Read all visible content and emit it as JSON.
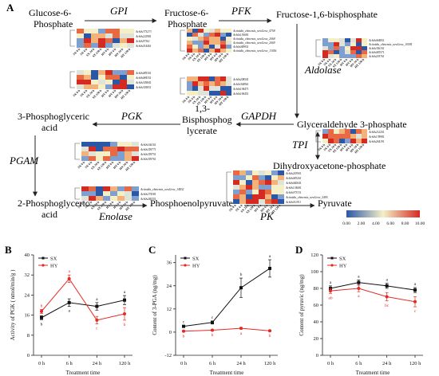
{
  "panels": {
    "A": "A",
    "B": "B",
    "C": "C",
    "D": "D"
  },
  "pathway": {
    "nodes": {
      "glucose6p": [
        "Glucose-6-",
        "Phosphate"
      ],
      "fructose6p": [
        "Fructose-6-",
        "Phosphate"
      ],
      "fructose16bp": "Fructose-1,6-bisphosphate",
      "glyceraldehyde3p": "Glyceraldehyde 3-phosphate",
      "bisphosphoglycerate": [
        "1,3-",
        "Bisphosphog",
        "lycerate"
      ],
      "phosphoglycerate3": [
        "3-Phosphoglyceric",
        "acid"
      ],
      "phosphoglycerate2": [
        "2-Phosphoglyceric",
        "acid"
      ],
      "dhap": "Dihydroxyacetone-phosphate",
      "pep": "Phosphoenolpyruvate",
      "pyruvate": "Pyruvate"
    },
    "enzymes": {
      "gpi": "GPI",
      "pfk": "PFK",
      "aldolase": "Aldolase",
      "gapdh": "GAPDH",
      "pgk": "PGK",
      "tpi": "TPI",
      "pgam": "PGAM",
      "enolase": "Enolase",
      "pk": "PK"
    }
  },
  "heatmap_columns": [
    "SX 0 h",
    "SX 6 h",
    "SX 24 h",
    "SX 120 h",
    "HY 0 h",
    "HY 6 h",
    "HY 24 h",
    "HY 120 h"
  ],
  "heatmaps": {
    "gpi": [
      "Ach0s373273",
      "Ach0s222981",
      "Ach0s97361",
      "Ach0s014461"
    ],
    "gpi2": [
      "Ach0s085301",
      "Ach0s084351",
      "Ach0s305841",
      "Ach0s305831"
    ],
    "pfk": [
      "Actinidia_chinensis_newGene_4758",
      "Ach0s130681",
      "Actinidia_chinensis_newGene_2068",
      "Actinidia_chinensis_newGene_2069",
      "Ach0s049951",
      "Actinidia_chinensis_newGene_13056"
    ],
    "pfk2": [
      "Ach0s208541",
      "Ach0s364961",
      "Ach0s194471",
      "Ach0s196451"
    ],
    "aldolase": [
      "Ach0s064851",
      "Actinidia_chinensis_newGene_10595",
      "Ach0s356101",
      "Ach0s083571",
      "Ach0s203761"
    ],
    "tpi": [
      "Ach0s212201",
      "Ach0s178981",
      "Ach0s264191"
    ],
    "pgk": [
      "Ach0s166161",
      "Ach0s359771",
      "Ach0s359751",
      "Ach0s359761"
    ],
    "pgam": [
      "Actinidia_chinensis_newGene_14832",
      "Ach0s374381",
      "Ach0s246351"
    ],
    "pk": [
      "Ach0s243901",
      "Ach0s083261",
      "Ach0s040641",
      "Ach0s134681",
      "Ach0s073331",
      "Actinidia_chinensis_newGene_5495",
      "Ach0s011911"
    ]
  },
  "colorbar": {
    "ticks": [
      "0.00",
      "2.00",
      "4.00",
      "6.00",
      "8.00",
      "10.00"
    ],
    "colors": [
      "#2b57a7",
      "#f4efc7",
      "#d52a22"
    ]
  },
  "colors": {
    "sx": "#111111",
    "hy": "#e32b24"
  },
  "chart_data": [
    {
      "type": "line",
      "panel": "B",
      "ylabel": "Activity of PGK ( nmol/min/g )",
      "xlabel": "Treatment time",
      "categories": [
        "0 h",
        "6 h",
        "24 h",
        "120 h"
      ],
      "ylim": [
        0,
        40
      ],
      "yticks": [
        0,
        8,
        16,
        24,
        32,
        40
      ],
      "legend": "top-left",
      "series": [
        {
          "name": "SX",
          "values": [
            15,
            21,
            19.5,
            22
          ],
          "err": [
            0.8,
            1.5,
            1.5,
            1.8
          ],
          "labels": [
            "b",
            "a",
            "a",
            "a"
          ]
        },
        {
          "name": "HY",
          "values": [
            17.5,
            30.5,
            14,
            16.5
          ],
          "err": [
            0.8,
            1.5,
            1.5,
            2.5
          ],
          "labels": [
            "b",
            "a",
            "c",
            "b"
          ]
        }
      ]
    },
    {
      "type": "line",
      "panel": "C",
      "ylabel": "Content of 3-PGA (ng/mg)",
      "xlabel": "Treatment time",
      "categories": [
        "0 h",
        "6 h",
        "24 h",
        "120 h"
      ],
      "ylim": [
        -12,
        40
      ],
      "yticks": [
        -12,
        0,
        12,
        24,
        36
      ],
      "legend": "top-left",
      "series": [
        {
          "name": "SX",
          "values": [
            3,
            5,
            23,
            33
          ],
          "err": [
            0.5,
            0.8,
            5,
            4.5
          ],
          "labels": [
            "c",
            "c",
            "b",
            "a"
          ]
        },
        {
          "name": "HY",
          "values": [
            0.5,
            1,
            2,
            0.7
          ],
          "err": [
            0.3,
            0.3,
            0.4,
            0.3
          ],
          "labels": [
            "b",
            "b",
            "a",
            "b"
          ]
        }
      ]
    },
    {
      "type": "line",
      "panel": "D",
      "ylabel": "Content of pyruvic (ng/mg)",
      "xlabel": "Treatment time",
      "categories": [
        "0 h",
        "6 h",
        "24 h",
        "120 h"
      ],
      "ylim": [
        0,
        120
      ],
      "yticks": [
        0,
        20,
        40,
        60,
        80,
        100,
        120
      ],
      "legend": "top-left",
      "series": [
        {
          "name": "SX",
          "values": [
            80,
            87,
            83,
            78
          ],
          "err": [
            3,
            3,
            3,
            3
          ],
          "labels": [
            "a",
            "a",
            "a",
            "a"
          ]
        },
        {
          "name": "HY",
          "values": [
            77,
            80,
            70,
            64
          ],
          "err": [
            3,
            4,
            5,
            6
          ],
          "labels": [
            "ab",
            "a",
            "bc",
            "c"
          ]
        }
      ]
    }
  ]
}
